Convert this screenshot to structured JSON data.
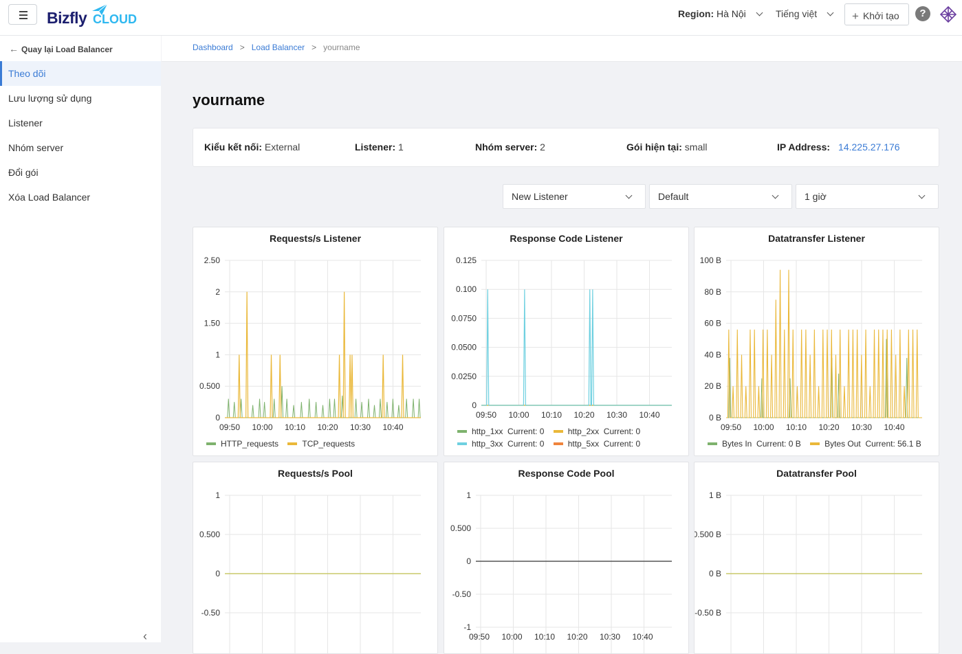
{
  "header": {
    "logo_text": "Bizfly",
    "logo_cloud": "CLOUD",
    "region_label": "Region:",
    "region_value": "Hà Nội",
    "language": "Tiếng việt",
    "create_label": "Khởi tạo",
    "help": "?"
  },
  "sidebar": {
    "back_label": "Quay lại Load Balancer",
    "items": [
      {
        "label": "Theo dõi"
      },
      {
        "label": "Lưu lượng sử dụng"
      },
      {
        "label": "Listener"
      },
      {
        "label": "Nhóm server"
      },
      {
        "label": "Đổi gói"
      },
      {
        "label": "Xóa Load Balancer"
      }
    ],
    "collapse": "‹"
  },
  "breadcrumb": {
    "items": [
      "Dashboard",
      "Load Balancer",
      "yourname"
    ],
    "separator": ">"
  },
  "page": {
    "title": "yourname",
    "info": {
      "connection_label": "Kiểu kết nối:",
      "connection_value": "External",
      "listener_label": "Listener:",
      "listener_value": "1",
      "server_group_label": "Nhóm server:",
      "server_group_value": "2",
      "plan_label": "Gói hiện tại:",
      "plan_value": "small",
      "ip_label": "IP Address:",
      "ip_value": "14.225.27.176"
    },
    "filters": {
      "listener": "New Listener",
      "pool": "Default",
      "time_range": "1 giờ"
    }
  },
  "colors": {
    "accent": "#3a7bd5",
    "green": "#7eb26d",
    "yellow": "#eab839",
    "cyan": "#6ed0e0",
    "orange": "#ef843c",
    "grid": "#e6e6e6"
  },
  "chart_data": [
    {
      "type": "line",
      "title": "Requests/s Listener",
      "x_ticks": [
        "09:50",
        "10:00",
        "10:10",
        "10:20",
        "10:30",
        "10:40"
      ],
      "y_ticks": [
        "2.50",
        "2",
        "1.50",
        "1",
        "0.500",
        "0"
      ],
      "ylim": [
        0,
        2.5
      ],
      "series": [
        {
          "name": "HTTP_requests",
          "color": "#7eb26d"
        },
        {
          "name": "TCP_requests",
          "color": "#eab839"
        }
      ],
      "spikes": {
        "TCP_requests": [
          [
            1.4,
            1
          ],
          [
            2.2,
            2
          ],
          [
            4.7,
            1
          ],
          [
            5.6,
            1
          ],
          [
            11.7,
            1
          ],
          [
            12.2,
            2
          ],
          [
            12.8,
            1
          ],
          [
            13.0,
            1
          ],
          [
            16.2,
            1
          ],
          [
            18.2,
            1
          ]
        ],
        "HTTP_requests": [
          [
            0.3,
            0.3
          ],
          [
            0.9,
            0.25
          ],
          [
            1.6,
            0.3
          ],
          [
            2.8,
            0.2
          ],
          [
            3.5,
            0.3
          ],
          [
            4.0,
            0.25
          ],
          [
            5.0,
            0.3
          ],
          [
            5.8,
            0.5
          ],
          [
            6.3,
            0.3
          ],
          [
            7.0,
            0.2
          ],
          [
            7.8,
            0.25
          ],
          [
            8.6,
            0.3
          ],
          [
            9.3,
            0.25
          ],
          [
            10.0,
            0.2
          ],
          [
            10.7,
            0.3
          ],
          [
            11.2,
            0.3
          ],
          [
            12.0,
            0.35
          ],
          [
            13.4,
            0.3
          ],
          [
            14.0,
            0.25
          ],
          [
            14.7,
            0.3
          ],
          [
            15.3,
            0.2
          ],
          [
            15.9,
            0.3
          ],
          [
            16.6,
            0.25
          ],
          [
            17.2,
            0.3
          ],
          [
            17.8,
            0.2
          ],
          [
            18.6,
            0.3
          ],
          [
            19.3,
            0.3
          ],
          [
            19.9,
            0.3
          ]
        ]
      },
      "legend": [
        "HTTP_requests",
        "TCP_requests"
      ]
    },
    {
      "type": "line",
      "title": "Response Code Listener",
      "x_ticks": [
        "09:50",
        "10:00",
        "10:10",
        "10:20",
        "10:30",
        "10:40"
      ],
      "y_ticks": [
        "0.125",
        "0.100",
        "0.0750",
        "0.0500",
        "0.0250",
        "0"
      ],
      "ylim": [
        0,
        0.125
      ],
      "series": [
        {
          "name": "http_1xx",
          "color": "#7eb26d",
          "current": "0"
        },
        {
          "name": "http_2xx",
          "color": "#eab839",
          "current": "0"
        },
        {
          "name": "http_3xx",
          "color": "#6ed0e0",
          "current": "0"
        },
        {
          "name": "http_5xx",
          "color": "#ef843c",
          "current": "0"
        }
      ],
      "spikes": {
        "http_3xx": [
          [
            0.6,
            0.1
          ],
          [
            4.5,
            0.1
          ],
          [
            11.4,
            0.1
          ],
          [
            11.7,
            0.1
          ]
        ]
      },
      "legend_rows": [
        [
          {
            "name": "http_1xx",
            "text": "Current: 0"
          },
          {
            "name": "http_2xx",
            "text": "Current: 0"
          }
        ],
        [
          {
            "name": "http_3xx",
            "text": "Current: 0"
          },
          {
            "name": "http_5xx",
            "text": "Current: 0"
          }
        ]
      ]
    },
    {
      "type": "line",
      "title": "Datatransfer Listener",
      "x_ticks": [
        "09:50",
        "10:00",
        "10:10",
        "10:20",
        "10:30",
        "10:40"
      ],
      "y_ticks": [
        "100 B",
        "80 B",
        "60 B",
        "40 B",
        "20 B",
        "0 B"
      ],
      "ylim": [
        0,
        100
      ],
      "series": [
        {
          "name": "Bytes In",
          "color": "#7eb26d",
          "current": "0 B"
        },
        {
          "name": "Bytes Out",
          "color": "#eab839",
          "current": "56.1 B"
        }
      ],
      "legend_rows": [
        [
          {
            "name": "Bytes In",
            "text": "Current: 0 B"
          },
          {
            "name": "Bytes Out",
            "text": "Current: 56.1 B"
          }
        ]
      ]
    },
    {
      "type": "line",
      "title": "Requests/s Pool",
      "y_ticks": [
        "1",
        "0.500",
        "0",
        "-0.50"
      ],
      "ylim": [
        -0.5,
        1
      ],
      "flat_value": 0
    },
    {
      "type": "line",
      "title": "Response Code Pool",
      "x_ticks": [
        "09:50",
        "10:00",
        "10:10",
        "10:20",
        "10:30",
        "10:40"
      ],
      "y_ticks": [
        "1",
        "0.500",
        "0",
        "-0.50",
        "-1"
      ],
      "ylim": [
        -1,
        1
      ],
      "flat_value": 0
    },
    {
      "type": "line",
      "title": "Datatransfer Pool",
      "y_ticks": [
        "1 B",
        "0.500 B",
        "0 B",
        "-0.50 B"
      ],
      "ylim": [
        -0.5,
        1
      ],
      "flat_value": 0
    }
  ]
}
